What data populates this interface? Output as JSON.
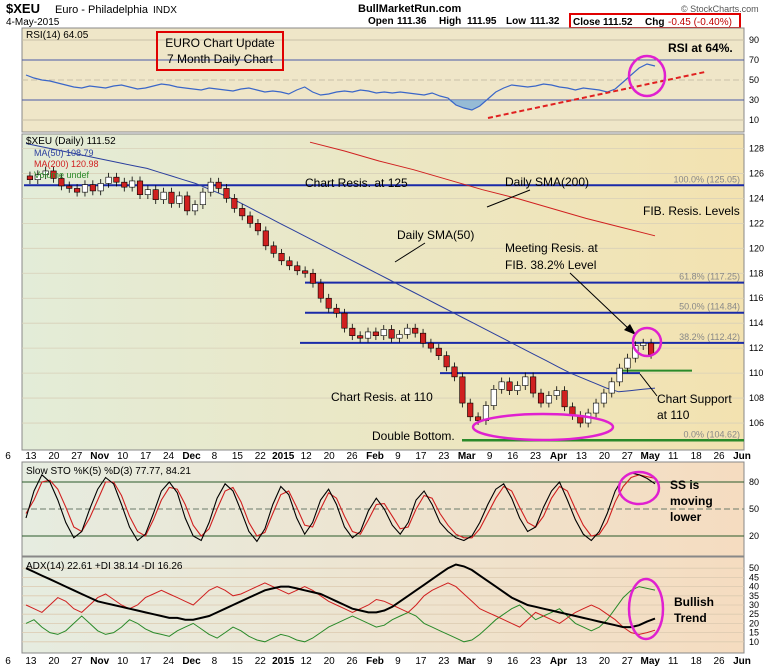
{
  "header": {
    "symbol": "$XEU",
    "name": "Euro - Philadelphia",
    "exchange": "INDX",
    "date": "4-May-2015",
    "site": "BullMarketRun.com",
    "open_label": "Open",
    "open": "111.36",
    "high_label": "High",
    "high": "111.95",
    "low_label": "Low",
    "low": "111.32",
    "close_label": "Close",
    "close": "111.52",
    "chg_label": "Chg",
    "chg": "-0.45 (-0.40%)",
    "watermark": "© StockCharts.com"
  },
  "colors": {
    "panel_bg": "#efe6c8",
    "rsi_line": "#3a66c8",
    "rsi_fill": "#7fb0d8",
    "price_line": "#000000",
    "sma50": "#2b3f9e",
    "sma200": "#d02020",
    "up_candle": "#ffffff",
    "down_candle": "#d02020",
    "resistance": "#1a2aa8",
    "support": "#2a8a2a",
    "annotation": "#e020d0",
    "stoch_k": "#000000",
    "stoch_d": "#d02020",
    "adx": "#000000",
    "plus_di": "#2a8a2a",
    "minus_di": "#d02020"
  },
  "chart_data": [
    {
      "type": "line",
      "panel": "rsi",
      "legend": "RSI(14) 64.05",
      "ylim": [
        0,
        100
      ],
      "ticks": [
        10,
        30,
        50,
        70,
        90
      ],
      "overbought": 70,
      "oversold": 30,
      "series": [
        {
          "name": "RSI(14)",
          "values": [
            55,
            52,
            50,
            49,
            47,
            45,
            43,
            42,
            44,
            43,
            42,
            44,
            45,
            43,
            41,
            42,
            44,
            46,
            45,
            43,
            42,
            41,
            40,
            42,
            41,
            40,
            39,
            41,
            42,
            40,
            38,
            39,
            38,
            36,
            40,
            43,
            38,
            35,
            36,
            38,
            39,
            38,
            40,
            39,
            37,
            38,
            37,
            38,
            37,
            36,
            35,
            37,
            34,
            32,
            25,
            22,
            20,
            24,
            31,
            38,
            42,
            45,
            44,
            43,
            44,
            46,
            45,
            43,
            42,
            40,
            42,
            41,
            40,
            38,
            41,
            48,
            55,
            62,
            66,
            64
          ]
        }
      ]
    },
    {
      "type": "candlestick",
      "panel": "price",
      "legend": "$XEU (Daily) 111.52",
      "legend_items": [
        "MA(50) 108.79",
        "MA(200) 120.98",
        "Volume undef"
      ],
      "ylim": [
        104,
        129
      ],
      "ticks": [
        106,
        108,
        110,
        112,
        114,
        116,
        118,
        120,
        122,
        124,
        126,
        128
      ],
      "x_labels": [
        "6",
        "13",
        "20",
        "27",
        "Nov",
        "10",
        "17",
        "24",
        "Dec",
        "8",
        "15",
        "22",
        "2015",
        "12",
        "20",
        "26",
        "Feb",
        "9",
        "17",
        "23",
        "Mar",
        "9",
        "16",
        "23",
        "Apr",
        "13",
        "20",
        "27",
        "May",
        "11",
        "18",
        "26",
        "Jun"
      ],
      "close": [
        125.5,
        125.9,
        126.2,
        125.6,
        125.0,
        124.8,
        124.5,
        125.1,
        124.6,
        125.2,
        125.7,
        125.3,
        124.9,
        125.4,
        124.3,
        124.7,
        123.9,
        124.5,
        123.6,
        124.2,
        123.0,
        123.5,
        124.5,
        125.3,
        124.8,
        124.0,
        123.2,
        122.6,
        122.0,
        121.4,
        120.2,
        119.6,
        119.0,
        118.6,
        118.2,
        118.0,
        117.2,
        116.0,
        115.2,
        114.8,
        113.6,
        113.0,
        112.8,
        113.3,
        113.0,
        113.5,
        112.8,
        113.1,
        113.6,
        113.2,
        112.4,
        112.0,
        111.4,
        110.5,
        109.7,
        107.6,
        106.5,
        106.2,
        107.4,
        108.7,
        109.3,
        108.6,
        109.0,
        109.7,
        108.4,
        107.6,
        108.2,
        108.6,
        107.3,
        106.6,
        106.0,
        106.8,
        107.6,
        108.4,
        109.3,
        110.4,
        111.2,
        112.2,
        112.4,
        111.5
      ],
      "sma50": [
        128.4,
        128.2,
        128.0,
        127.8,
        127.6,
        127.4,
        127.2,
        127.0,
        126.8,
        126.6,
        126.4,
        126.1,
        125.8,
        125.5,
        125.2,
        124.8,
        124.4,
        124.0,
        123.5,
        123.0,
        122.5,
        122.0,
        121.5,
        121.0,
        120.5,
        120.0,
        119.5,
        119.0,
        118.5,
        118.0,
        117.5,
        117.0,
        116.5,
        116.0,
        115.5,
        115.0,
        114.5,
        114.0,
        113.5,
        113.0,
        112.5,
        112.0,
        111.5,
        111.0,
        110.5,
        110.0,
        109.6,
        109.2,
        108.8,
        108.5,
        108.6,
        108.7,
        108.8
      ],
      "sma200": [
        128.5,
        127.8,
        127.0,
        126.3,
        125.5,
        124.7,
        124.0,
        123.2,
        122.4,
        121.7,
        121.0
      ],
      "lines": [
        {
          "label": "Chart Resis. at 125",
          "value": 125.05
        },
        {
          "label": "Chart Resis. at 110",
          "value": 110
        },
        {
          "label": "Chart Support at 110",
          "value": 110.2
        }
      ],
      "fib_levels": [
        {
          "label": "100.0% (125.05)",
          "value": 125.05
        },
        {
          "label": "61.8% (117.25)",
          "value": 117.25
        },
        {
          "label": "50.0% (114.84)",
          "value": 114.84
        },
        {
          "label": "38.2% (112.42)",
          "value": 112.42
        },
        {
          "label": "0.0% (104.62)",
          "value": 104.62
        }
      ]
    },
    {
      "type": "line",
      "panel": "stochastic",
      "legend": "Slow STO %K(5) %D(3) 77.77, 84.21",
      "ylim": [
        0,
        100
      ],
      "ticks": [
        20,
        50,
        80
      ],
      "series": [
        {
          "name": "%K(5)",
          "values": [
            40,
            70,
            88,
            80,
            60,
            35,
            18,
            25,
            50,
            72,
            85,
            78,
            55,
            30,
            15,
            22,
            45,
            70,
            80,
            68,
            40,
            20,
            15,
            35,
            62,
            78,
            70,
            48,
            25,
            14,
            28,
            55,
            75,
            66,
            40,
            22,
            35,
            60,
            72,
            55,
            30,
            18,
            25,
            48,
            62,
            50,
            32,
            22,
            35,
            60,
            70,
            55,
            35,
            25,
            18,
            15,
            20,
            35,
            55,
            72,
            78,
            62,
            40,
            25,
            30,
            52,
            70,
            80,
            60,
            38,
            22,
            15,
            25,
            45,
            70,
            85,
            90,
            88,
            84,
            78
          ]
        },
        {
          "name": "%D(3)",
          "values": [
            45,
            60,
            80,
            82,
            72,
            52,
            30,
            25,
            40,
            60,
            80,
            80,
            65,
            42,
            25,
            20,
            38,
            60,
            74,
            72,
            55,
            32,
            20,
            28,
            50,
            70,
            74,
            58,
            35,
            20,
            24,
            45,
            66,
            70,
            52,
            32,
            30,
            50,
            68,
            62,
            42,
            25,
            22,
            38,
            55,
            56,
            42,
            28,
            30,
            50,
            65,
            62,
            45,
            32,
            22,
            18,
            18,
            28,
            45,
            62,
            75,
            70,
            52,
            35,
            30,
            42,
            62,
            75,
            70,
            50,
            32,
            20,
            22,
            35,
            58,
            75,
            85,
            88,
            86,
            84
          ]
        }
      ]
    },
    {
      "type": "line",
      "panel": "adx",
      "legend": "ADX(14) 22.61 +DI 38.14 -DI 16.26",
      "ylim": [
        5,
        55
      ],
      "ticks": [
        10,
        15,
        20,
        25,
        30,
        35,
        40,
        45,
        50
      ],
      "series": [
        {
          "name": "ADX(14)",
          "values": [
            50,
            48,
            46,
            44,
            42,
            40,
            38,
            36,
            34,
            32,
            31,
            30,
            29,
            28,
            27,
            26,
            25,
            24,
            23,
            23,
            22,
            22,
            23,
            24,
            26,
            28,
            30,
            32,
            34,
            36,
            38,
            39,
            40,
            40,
            39,
            38,
            37,
            36,
            34,
            32,
            30,
            28,
            27,
            26,
            26,
            27,
            29,
            32,
            35,
            38,
            41,
            44,
            47,
            50,
            52,
            51,
            49,
            46,
            43,
            40,
            37,
            34,
            32,
            30,
            29,
            28,
            27,
            26,
            25,
            24,
            23,
            22,
            21,
            20,
            19,
            18,
            18,
            19,
            21,
            22.6
          ]
        },
        {
          "name": "+DI",
          "values": [
            20,
            22,
            18,
            15,
            14,
            16,
            20,
            24,
            20,
            16,
            14,
            15,
            18,
            22,
            20,
            17,
            15,
            14,
            13,
            16,
            18,
            20,
            17,
            14,
            12,
            15,
            18,
            16,
            13,
            11,
            10,
            12,
            14,
            13,
            11,
            10,
            12,
            15,
            18,
            20,
            22,
            24,
            22,
            20,
            18,
            19,
            22,
            24,
            26,
            24,
            20,
            18,
            16,
            14,
            12,
            10,
            11,
            14,
            18,
            22,
            25,
            28,
            30,
            26,
            22,
            24,
            26,
            28,
            24,
            20,
            18,
            16,
            18,
            22,
            28,
            34,
            38,
            40,
            39,
            38.1
          ]
        },
        {
          "name": "-DI",
          "values": [
            30,
            28,
            26,
            30,
            34,
            32,
            28,
            26,
            30,
            34,
            36,
            33,
            30,
            28,
            30,
            34,
            36,
            38,
            36,
            34,
            32,
            30,
            34,
            38,
            40,
            38,
            35,
            36,
            38,
            40,
            42,
            40,
            38,
            36,
            38,
            40,
            38,
            35,
            32,
            30,
            28,
            26,
            28,
            30,
            33,
            32,
            30,
            28,
            26,
            30,
            35,
            38,
            40,
            42,
            40,
            36,
            32,
            28,
            26,
            24,
            22,
            20,
            18,
            22,
            26,
            24,
            22,
            20,
            23,
            26,
            28,
            30,
            28,
            25,
            22,
            18,
            15,
            14,
            15,
            16.3
          ]
        }
      ]
    }
  ],
  "annotations": {
    "title_box": [
      "EURO Chart Update",
      "7 Month Daily Chart"
    ],
    "rsi_note": "RSI at 64%.",
    "sma200_note": "Daily SMA(200)",
    "sma50_note": "Daily SMA(50)",
    "fib_note": "FIB. Resis. Levels",
    "meeting_note": [
      "Meeting Resis. at",
      "FIB. 38.2% Level"
    ],
    "double_bottom": "Double Bottom.",
    "support_note": [
      "Chart Support",
      "at 110"
    ],
    "ss_note": [
      "SS is",
      "moving",
      "lower"
    ],
    "bullish_note": [
      "Bullish",
      "Trend"
    ]
  }
}
